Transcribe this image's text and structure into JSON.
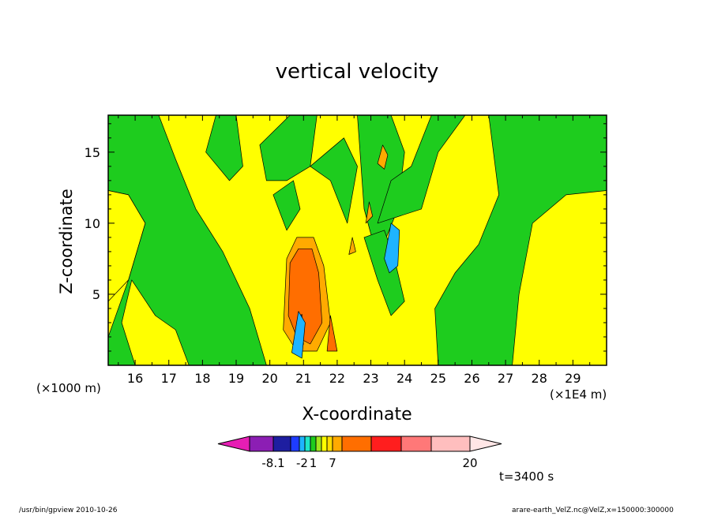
{
  "chart_data": {
    "type": "contour",
    "title": "vertical velocity",
    "xlabel": "X-coordinate",
    "ylabel": "Z-coordinate",
    "x_unit_left": "(×1000 m)",
    "x_unit_right": "(×1E4 m)",
    "xlim": [
      152000,
      300000
    ],
    "ylim": [
      0,
      17600
    ],
    "x_ticks": [
      {
        "value": 160000,
        "label": "16"
      },
      {
        "value": 170000,
        "label": "17"
      },
      {
        "value": 180000,
        "label": "18"
      },
      {
        "value": 190000,
        "label": "19"
      },
      {
        "value": 200000,
        "label": "20"
      },
      {
        "value": 210000,
        "label": "21"
      },
      {
        "value": 220000,
        "label": "22"
      },
      {
        "value": 230000,
        "label": "23"
      },
      {
        "value": 240000,
        "label": "24"
      },
      {
        "value": 250000,
        "label": "25"
      },
      {
        "value": 260000,
        "label": "26"
      },
      {
        "value": 270000,
        "label": "27"
      },
      {
        "value": 280000,
        "label": "28"
      },
      {
        "value": 290000,
        "label": "29"
      }
    ],
    "y_ticks": [
      {
        "value": 5000,
        "label": "5"
      },
      {
        "value": 10000,
        "label": "10"
      },
      {
        "value": 15000,
        "label": "15"
      }
    ],
    "colorbar": {
      "labels": [
        {
          "text": "-8.1",
          "index": 1
        },
        {
          "text": "-2",
          "index": 3.5
        },
        {
          "text": "1",
          "index": 5.5
        },
        {
          "text": "7",
          "index": 9
        },
        {
          "text": "20",
          "index": 14
        }
      ],
      "colors": [
        "#e61eb4",
        "#8c1eb4",
        "#1e1ea0",
        "#1e3cff",
        "#1eb4ff",
        "#1ee6c8",
        "#1ecc1e",
        "#a0e61e",
        "#ffff00",
        "#ffdc00",
        "#ffaa00",
        "#ff6e00",
        "#ff1e1e",
        "#ff7878",
        "#ffbebe",
        "#ffe6e6"
      ]
    },
    "time_label": "t=3400 s",
    "regions": [
      {
        "color": "#ffff00",
        "points": [
          [
            152000,
            17600
          ],
          [
            300000,
            17600
          ],
          [
            300000,
            0
          ],
          [
            152000,
            0
          ]
        ]
      },
      {
        "color": "#1ecc1e",
        "points": [
          [
            152000,
            17600
          ],
          [
            167000,
            17600
          ],
          [
            172000,
            14500
          ],
          [
            178000,
            11000
          ],
          [
            186000,
            8000
          ],
          [
            194000,
            4000
          ],
          [
            199000,
            0
          ],
          [
            152000,
            0
          ],
          [
            152000,
            2000
          ],
          [
            158000,
            6000
          ],
          [
            163000,
            10000
          ],
          [
            158000,
            12000
          ],
          [
            152000,
            12300
          ]
        ]
      },
      {
        "color": "#ffff00",
        "points": [
          [
            152000,
            12300
          ],
          [
            158000,
            12000
          ],
          [
            163000,
            10000
          ],
          [
            158000,
            6000
          ],
          [
            152000,
            4500
          ]
        ]
      },
      {
        "color": "#ffff00",
        "points": [
          [
            159000,
            6000
          ],
          [
            166000,
            3500
          ],
          [
            172000,
            2500
          ],
          [
            176000,
            0
          ],
          [
            160000,
            0
          ],
          [
            156000,
            3000
          ]
        ]
      },
      {
        "color": "#1ecc1e",
        "points": [
          [
            265000,
            17600
          ],
          [
            300000,
            17600
          ],
          [
            300000,
            0
          ],
          [
            250000,
            0
          ],
          [
            249000,
            4000
          ],
          [
            255000,
            6500
          ],
          [
            262000,
            8500
          ],
          [
            268000,
            12000
          ]
        ]
      },
      {
        "color": "#ffff00",
        "points": [
          [
            272000,
            0
          ],
          [
            300000,
            0
          ],
          [
            300000,
            12300
          ],
          [
            288000,
            12000
          ],
          [
            278000,
            10000
          ],
          [
            274000,
            5000
          ]
        ]
      },
      {
        "color": "#1ecc1e",
        "points": [
          [
            226000,
            17600
          ],
          [
            236000,
            17600
          ],
          [
            240000,
            15000
          ],
          [
            238000,
            11000
          ],
          [
            232000,
            7500
          ],
          [
            228000,
            11000
          ]
        ]
      },
      {
        "color": "#1ecc1e",
        "points": [
          [
            232000,
            10000
          ],
          [
            245000,
            11000
          ],
          [
            250000,
            15000
          ],
          [
            258000,
            17600
          ],
          [
            248000,
            17600
          ],
          [
            242000,
            14000
          ],
          [
            236000,
            13000
          ]
        ]
      },
      {
        "color": "#1ecc1e",
        "points": [
          [
            181000,
            15000
          ],
          [
            184000,
            17600
          ],
          [
            190000,
            17600
          ],
          [
            192000,
            14000
          ],
          [
            188000,
            13000
          ]
        ]
      },
      {
        "color": "#1ecc1e",
        "points": [
          [
            197000,
            15500
          ],
          [
            206000,
            17600
          ],
          [
            214000,
            17600
          ],
          [
            212000,
            14000
          ],
          [
            205000,
            13000
          ],
          [
            199000,
            13000
          ]
        ]
      },
      {
        "color": "#1ecc1e",
        "points": [
          [
            201000,
            12000
          ],
          [
            205000,
            9500
          ],
          [
            209000,
            11000
          ],
          [
            207000,
            13000
          ]
        ]
      },
      {
        "color": "#1ecc1e",
        "points": [
          [
            212000,
            14000
          ],
          [
            218000,
            13000
          ],
          [
            223000,
            10000
          ],
          [
            226000,
            14000
          ],
          [
            222000,
            16000
          ]
        ]
      },
      {
        "color": "#1ecc1e",
        "points": [
          [
            228000,
            9000
          ],
          [
            232000,
            6000
          ],
          [
            236000,
            3500
          ],
          [
            240000,
            4500
          ],
          [
            237000,
            7500
          ],
          [
            234000,
            9500
          ]
        ]
      },
      {
        "color": "#ffaa00",
        "points": [
          [
            204000,
            2500
          ],
          [
            205000,
            7500
          ],
          [
            208000,
            9000
          ],
          [
            213000,
            9000
          ],
          [
            216000,
            7000
          ],
          [
            218000,
            3000
          ],
          [
            214000,
            1000
          ],
          [
            208000,
            1000
          ]
        ]
      },
      {
        "color": "#ff6e00",
        "points": [
          [
            205500,
            3500
          ],
          [
            206000,
            7200
          ],
          [
            208500,
            8200
          ],
          [
            212500,
            8200
          ],
          [
            214500,
            6500
          ],
          [
            215500,
            3000
          ],
          [
            212000,
            1500
          ],
          [
            208000,
            2000
          ]
        ]
      },
      {
        "color": "#ff6e00",
        "points": [
          [
            217000,
            1000
          ],
          [
            218000,
            3500
          ],
          [
            220000,
            1000
          ]
        ]
      },
      {
        "color": "#1e3cff",
        "points": [
          [
            207000,
            1200
          ],
          [
            208000,
            3000
          ],
          [
            209500,
            3600
          ],
          [
            210000,
            1500
          ],
          [
            209000,
            900
          ]
        ]
      },
      {
        "color": "#1eb4ff",
        "points": [
          [
            206500,
            900
          ],
          [
            208500,
            3800
          ],
          [
            210500,
            3000
          ],
          [
            209500,
            500
          ]
        ]
      },
      {
        "color": "#1eb4ff",
        "points": [
          [
            234000,
            7500
          ],
          [
            236000,
            10000
          ],
          [
            238500,
            9500
          ],
          [
            238000,
            7000
          ],
          [
            235500,
            6500
          ]
        ]
      },
      {
        "color": "#ffaa00",
        "points": [
          [
            232000,
            14200
          ],
          [
            233500,
            15500
          ],
          [
            235000,
            14800
          ],
          [
            234000,
            13800
          ]
        ]
      },
      {
        "color": "#ffaa00",
        "points": [
          [
            228500,
            10000
          ],
          [
            229500,
            11500
          ],
          [
            230500,
            10500
          ]
        ]
      },
      {
        "color": "#ffaa00",
        "points": [
          [
            223500,
            7800
          ],
          [
            224500,
            9000
          ],
          [
            225500,
            8000
          ]
        ]
      }
    ]
  },
  "footer": {
    "left": "/usr/bin/gpview   2010-10-26",
    "right": "arare-earth_VelZ.nc@VelZ,x=150000:300000"
  }
}
